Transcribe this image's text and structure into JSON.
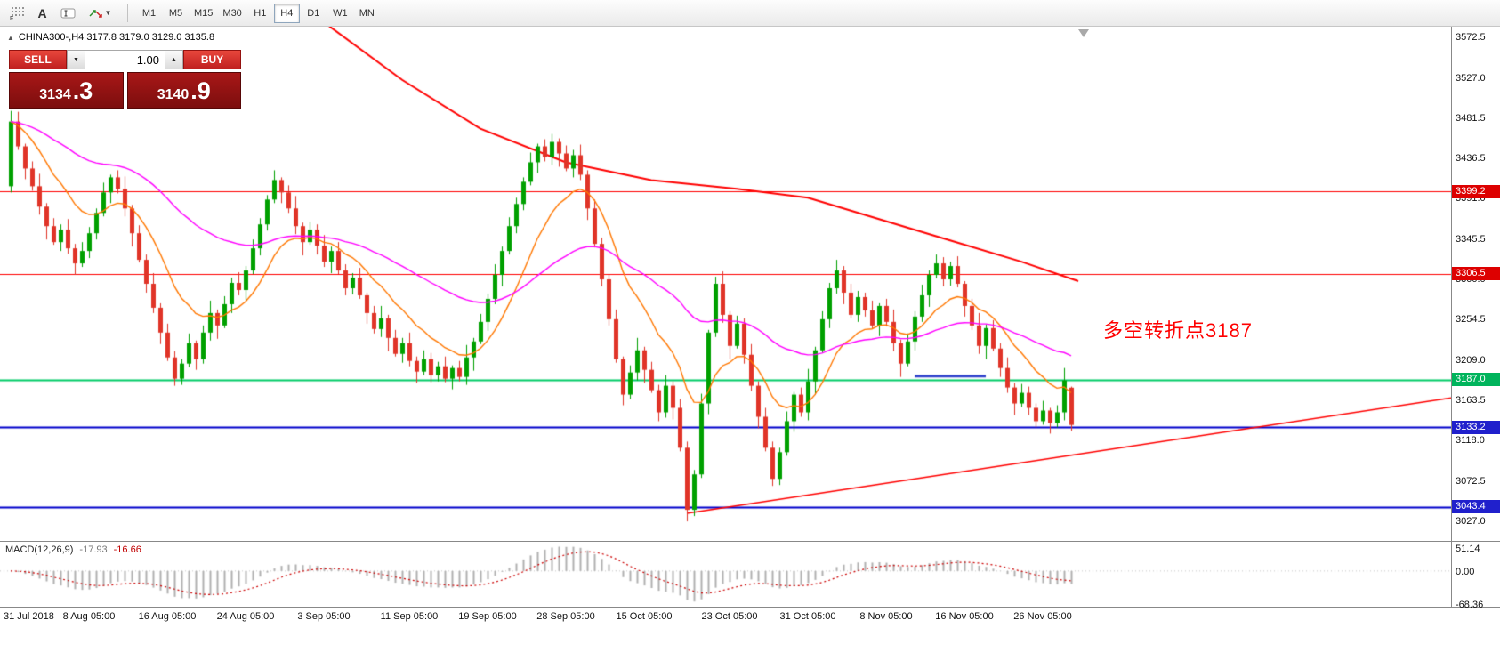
{
  "toolbar": {
    "text_tool_label": "A",
    "timeframes": [
      "M1",
      "M5",
      "M15",
      "M30",
      "H1",
      "H4",
      "D1",
      "W1",
      "MN"
    ],
    "active_timeframe": "H4"
  },
  "chart": {
    "symbol_header": "CHINA300-,H4 3177.8 3179.0 3129.0 3135.8",
    "one_click": {
      "sell_label": "SELL",
      "buy_label": "BUY",
      "volume": "1.00",
      "sell_price_main": "3134",
      "sell_price_big": ".3",
      "buy_price_main": "3140",
      "buy_price_big": ".9"
    },
    "annotation": {
      "text": "多空转折点3187",
      "color": "#ff0000"
    },
    "price_axis": {
      "ticks": [
        {
          "label": "3572.5",
          "price": 3572.5
        },
        {
          "label": "3527.0",
          "price": 3527.0
        },
        {
          "label": "3481.5",
          "price": 3481.5
        },
        {
          "label": "3436.5",
          "price": 3436.5
        },
        {
          "label": "3391.0",
          "price": 3391.0
        },
        {
          "label": "3345.5",
          "price": 3345.5
        },
        {
          "label": "3300.0",
          "price": 3300.0
        },
        {
          "label": "3254.5",
          "price": 3254.5
        },
        {
          "label": "3209.0",
          "price": 3209.0
        },
        {
          "label": "3163.5",
          "price": 3163.5
        },
        {
          "label": "3118.0",
          "price": 3118.0
        },
        {
          "label": "3072.5",
          "price": 3072.5
        },
        {
          "label": "3027.0",
          "price": 3027.0
        }
      ]
    },
    "badges": [
      {
        "label": "3399.2",
        "price": 3399.2,
        "bg": "#dd0000"
      },
      {
        "label": "3306.5",
        "price": 3306.5,
        "bg": "#dd0000"
      },
      {
        "label": "3187.0",
        "price": 3187.0,
        "bg": "#00b45c"
      },
      {
        "label": "3133.2",
        "price": 3133.2,
        "bg": "#2020cc"
      },
      {
        "label": "3043.4",
        "price": 3043.4,
        "bg": "#2020cc"
      }
    ],
    "hlines": [
      {
        "price": 3399.2,
        "color": "#ff0000",
        "width": 1.2
      },
      {
        "price": 3306.5,
        "color": "#ff0000",
        "width": 1.2
      },
      {
        "price": 3187.0,
        "color": "#00cc66",
        "width": 2
      },
      {
        "price": 3133.2,
        "color": "#0000cc",
        "width": 2
      },
      {
        "price": 3043.4,
        "color": "#0000cc",
        "width": 2
      }
    ],
    "trendlines": [
      {
        "name": "long-term-descending-line",
        "color": "#ff0000",
        "width": 2,
        "points": [
          [
            44,
            3590
          ],
          [
            55,
            3525
          ],
          [
            66,
            3470
          ],
          [
            78,
            3432
          ],
          [
            90,
            3412
          ],
          [
            102,
            3402
          ],
          [
            112,
            3392
          ],
          [
            122,
            3368
          ],
          [
            132,
            3344
          ],
          [
            142,
            3320
          ],
          [
            150,
            3298
          ]
        ]
      },
      {
        "name": "ascending-support-line",
        "color": "#ff0000",
        "width": 1.5,
        "points": [
          [
            95,
            3036
          ],
          [
            212,
            3178
          ]
        ]
      },
      {
        "name": "blue-horizontal-segment",
        "color": "#3344cc",
        "width": 3,
        "points": [
          [
            127,
            3191
          ],
          [
            137,
            3191
          ]
        ]
      }
    ]
  },
  "chart_data": {
    "type": "candlestick",
    "symbol": "CHINA300-",
    "timeframe": "H4",
    "ohlc_display": {
      "open": "3177.8",
      "high": "3179.0",
      "low": "3129.0",
      "close": "3135.8"
    },
    "y_range": [
      3005,
      3585
    ],
    "up_color": "#00a000",
    "down_color": "#e03428",
    "first_open": 3405,
    "closes": [
      3478,
      3450,
      3425,
      3405,
      3382,
      3360,
      3342,
      3356,
      3335,
      3318,
      3332,
      3352,
      3375,
      3398,
      3415,
      3402,
      3380,
      3352,
      3322,
      3295,
      3268,
      3240,
      3212,
      3188,
      3205,
      3228,
      3210,
      3240,
      3262,
      3248,
      3272,
      3296,
      3288,
      3310,
      3335,
      3362,
      3390,
      3412,
      3398,
      3380,
      3360,
      3342,
      3356,
      3338,
      3320,
      3332,
      3310,
      3290,
      3302,
      3282,
      3262,
      3244,
      3256,
      3234,
      3216,
      3228,
      3208,
      3196,
      3210,
      3192,
      3202,
      3188,
      3200,
      3190,
      3212,
      3230,
      3252,
      3278,
      3305,
      3332,
      3360,
      3385,
      3410,
      3432,
      3450,
      3438,
      3455,
      3442,
      3425,
      3440,
      3418,
      3380,
      3340,
      3300,
      3255,
      3210,
      3170,
      3195,
      3220,
      3198,
      3175,
      3150,
      3180,
      3155,
      3110,
      3040,
      3080,
      3160,
      3240,
      3295,
      3260,
      3225,
      3250,
      3215,
      3180,
      3145,
      3110,
      3075,
      3105,
      3140,
      3170,
      3150,
      3185,
      3220,
      3255,
      3290,
      3310,
      3285,
      3260,
      3280,
      3265,
      3248,
      3270,
      3252,
      3228,
      3205,
      3230,
      3258,
      3282,
      3305,
      3318,
      3300,
      3315,
      3295,
      3270,
      3248,
      3225,
      3245,
      3222,
      3200,
      3178,
      3160,
      3172,
      3155,
      3140,
      3152,
      3138,
      3150,
      3186,
      3135.8
    ],
    "wick_up_pattern": [
      5,
      11,
      3,
      8,
      14,
      4,
      9,
      6,
      12,
      5,
      10,
      7
    ],
    "wick_dn_pattern": [
      7,
      4,
      12,
      5,
      9,
      15,
      3,
      10,
      6,
      13,
      4,
      8
    ],
    "overrides": {
      "0": {
        "high": 3490
      },
      "76": {
        "high": 3464
      },
      "95": {
        "low": 3027
      },
      "149": {
        "open": 3177.8,
        "high": 3179.0,
        "low": 3129.0,
        "close": 3135.8
      }
    },
    "ma": [
      {
        "name": "fast-ma",
        "period": 12,
        "color": "#ff7700"
      },
      {
        "name": "slow-ma",
        "period": 45,
        "color": "#ff00ff"
      }
    ],
    "x_axis_labels": [
      "31 Jul 2018",
      "8 Aug 05:00",
      "16 Aug 05:00",
      "24 Aug 05:00",
      "3 Sep 05:00",
      "11 Sep 05:00",
      "19 Sep 05:00",
      "28 Sep 05:00",
      "15 Oct 05:00",
      "23 Oct 05:00",
      "31 Oct 05:00",
      "8 Nov 05:00",
      "16 Nov 05:00",
      "26 Nov 05:00"
    ],
    "label_bar_indexes": [
      0,
      11,
      22,
      33,
      44,
      56,
      67,
      78,
      89,
      101,
      112,
      123,
      134,
      145
    ]
  },
  "macd": {
    "label": "MACD(12,26,9)",
    "value_main": "-17.93",
    "value_signal": "-16.66",
    "fast": 12,
    "slow": 26,
    "signal": 9,
    "range": [
      -75,
      58
    ],
    "axis_labels": [
      {
        "label": "51.14",
        "value": 51.14
      },
      {
        "label": "0.00",
        "value": 0
      },
      {
        "label": "-68.36",
        "value": -68.36
      }
    ],
    "hist_color": "#b0b0b0",
    "signal_color": "#cc0000"
  }
}
